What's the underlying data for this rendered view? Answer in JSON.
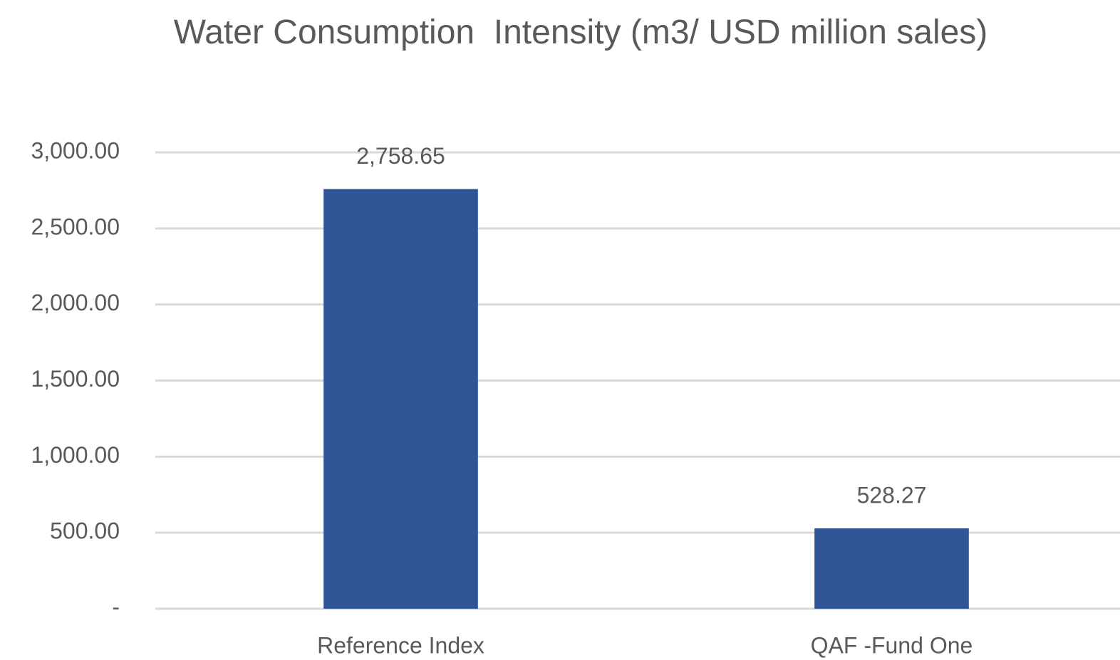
{
  "chart_data": {
    "type": "bar",
    "title": "Water Consumption  Intensity (m3/ USD million sales)",
    "categories": [
      "Reference Index",
      "QAF -Fund One"
    ],
    "values": [
      2758.65,
      528.27
    ],
    "value_labels": [
      "2,758.65",
      "528.27"
    ],
    "color": "#2f5597",
    "ylim": [
      0,
      3000
    ],
    "yticks": [
      {
        "value": 0,
        "label": "-"
      },
      {
        "value": 500,
        "label": "500.00"
      },
      {
        "value": 1000,
        "label": "1,000.00"
      },
      {
        "value": 1500,
        "label": "1,500.00"
      },
      {
        "value": 2000,
        "label": "2,000.00"
      },
      {
        "value": 2500,
        "label": "2,500.00"
      },
      {
        "value": 3000,
        "label": "3,000.00"
      }
    ],
    "grid": true
  }
}
